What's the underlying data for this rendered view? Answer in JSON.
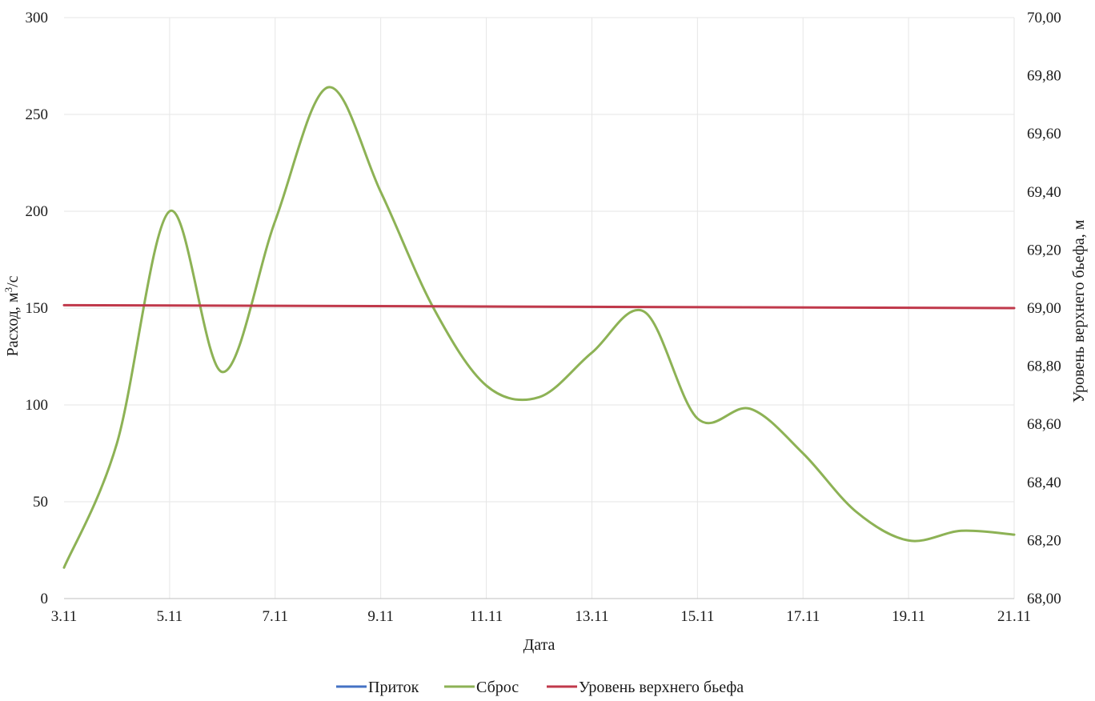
{
  "chart_data": {
    "type": "line",
    "xlabel": "Дата",
    "ylabel_left": "Расход, м³/с",
    "ylabel_left_parts": {
      "main": "Расход, м",
      "sup": "3",
      "tail": "/с"
    },
    "ylabel_right": "Уровень верхнего бьефа, м",
    "x_tick_labels": [
      "3.11",
      "5.11",
      "7.11",
      "9.11",
      "11.11",
      "13.11",
      "15.11",
      "17.11",
      "19.11",
      "21.11"
    ],
    "x_tick_days": [
      3,
      5,
      7,
      9,
      11,
      13,
      15,
      17,
      19,
      21
    ],
    "x_range": [
      3,
      21
    ],
    "y_left_range": [
      0,
      300
    ],
    "y_left_ticks": [
      "0",
      "50",
      "100",
      "150",
      "200",
      "250",
      "300"
    ],
    "y_left_tick_values": [
      0,
      50,
      100,
      150,
      200,
      250,
      300
    ],
    "y_right_range": [
      68.0,
      70.0
    ],
    "y_right_ticks": [
      "68,00",
      "68,20",
      "68,40",
      "68,60",
      "68,80",
      "69,00",
      "69,20",
      "69,40",
      "69,60",
      "69,80",
      "70,00"
    ],
    "y_right_tick_values": [
      68.0,
      68.2,
      68.4,
      68.6,
      68.8,
      69.0,
      69.2,
      69.4,
      69.6,
      69.8,
      70.0
    ],
    "grid": true,
    "legend_position": "bottom",
    "series": [
      {
        "name": "Приток",
        "color": "#4472c4",
        "axis": "left",
        "x": [],
        "values": []
      },
      {
        "name": "Сброс",
        "color": "#8db255",
        "axis": "left",
        "x": [
          3,
          4,
          5,
          6,
          7,
          8,
          9,
          10,
          11,
          12,
          13,
          14,
          15,
          16,
          17,
          18,
          19,
          20,
          21
        ],
        "values": [
          16,
          80,
          200,
          117,
          195,
          264,
          210,
          150,
          110,
          104,
          127,
          148,
          93,
          98,
          75,
          45,
          30,
          35,
          33
        ]
      },
      {
        "name": "Уровень верхнего бьефа",
        "color": "#c0394b",
        "axis": "right",
        "x": [
          3,
          21
        ],
        "values": [
          69.01,
          69.0
        ]
      }
    ]
  }
}
